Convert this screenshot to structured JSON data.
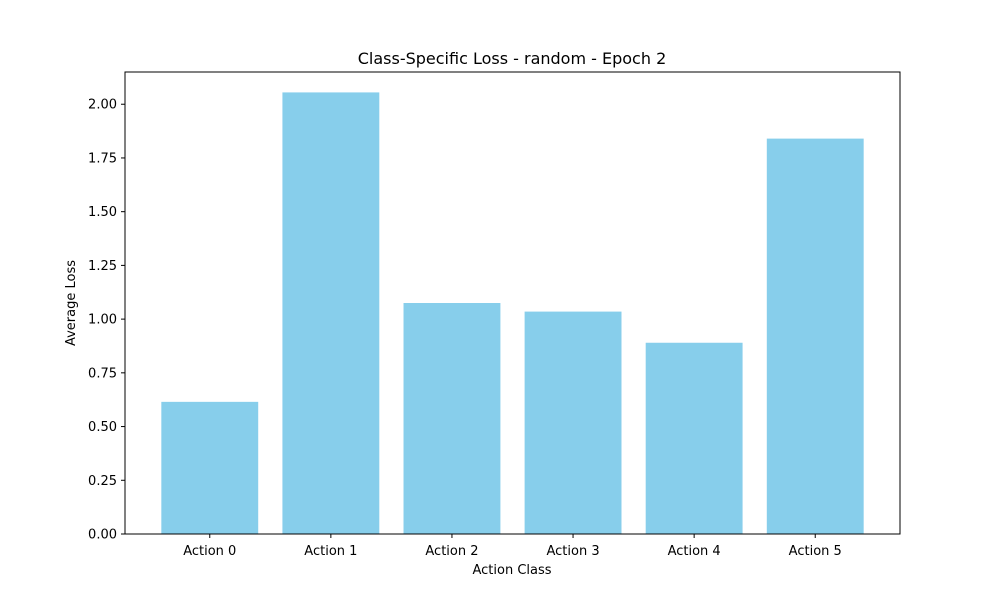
{
  "chart_data": {
    "type": "bar",
    "title": "Class-Specific Loss - random - Epoch 2",
    "xlabel": "Action Class",
    "ylabel": "Average Loss",
    "categories": [
      "Action 0",
      "Action 1",
      "Action 2",
      "Action 3",
      "Action 4",
      "Action 5"
    ],
    "values": [
      0.615,
      2.055,
      1.075,
      1.035,
      0.89,
      1.84
    ],
    "ylim": [
      0,
      2.15
    ],
    "yticks": [
      "0.00",
      "0.25",
      "0.50",
      "0.75",
      "1.00",
      "1.25",
      "1.50",
      "1.75",
      "2.00"
    ],
    "bar_color": "#87ceeb",
    "grid": false
  }
}
